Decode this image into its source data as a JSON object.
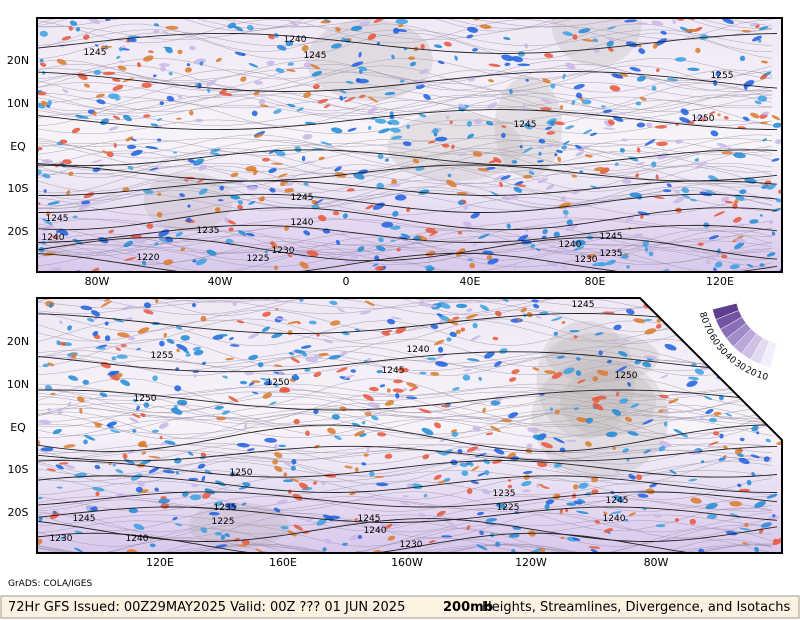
{
  "panels": [
    {
      "lat_labels": [
        "20N",
        "10N",
        "EQ",
        "10S",
        "20S"
      ],
      "lon_labels": [
        "80W",
        "40W",
        "0",
        "40E",
        "80E",
        "120E"
      ],
      "contour_labels": [
        "1245",
        "1240",
        "1245",
        "1255",
        "1250",
        "1245",
        "1245",
        "1240",
        "1245",
        "1240",
        "1235",
        "1230",
        "1225",
        "1220",
        "1240",
        "1245",
        "1235",
        "1230"
      ]
    },
    {
      "lat_labels": [
        "20N",
        "10N",
        "EQ",
        "10S",
        "20S"
      ],
      "lon_labels": [
        "120E",
        "160E",
        "160W",
        "120W",
        "80W"
      ],
      "contour_labels": [
        "1245",
        "1240",
        "1255",
        "1250",
        "1245",
        "1250",
        "1250",
        "1250",
        "1235",
        "1225",
        "1245",
        "1230",
        "1240",
        "1245",
        "1240",
        "1230",
        "1235",
        "1225",
        "1245",
        "1240"
      ]
    }
  ],
  "legend": {
    "labels": [
      "80",
      "70",
      "60",
      "50",
      "40",
      "30",
      "20",
      "10"
    ]
  },
  "credit": "GrADS: COLA/IGES",
  "footer": {
    "left": "72Hr GFS Issued: 00Z29MAY2025 Valid: 00Z ??? 01 JUN 2025",
    "level": "200mb",
    "right": "Heights, Streamlines, Divergence, and Isotachs"
  }
}
